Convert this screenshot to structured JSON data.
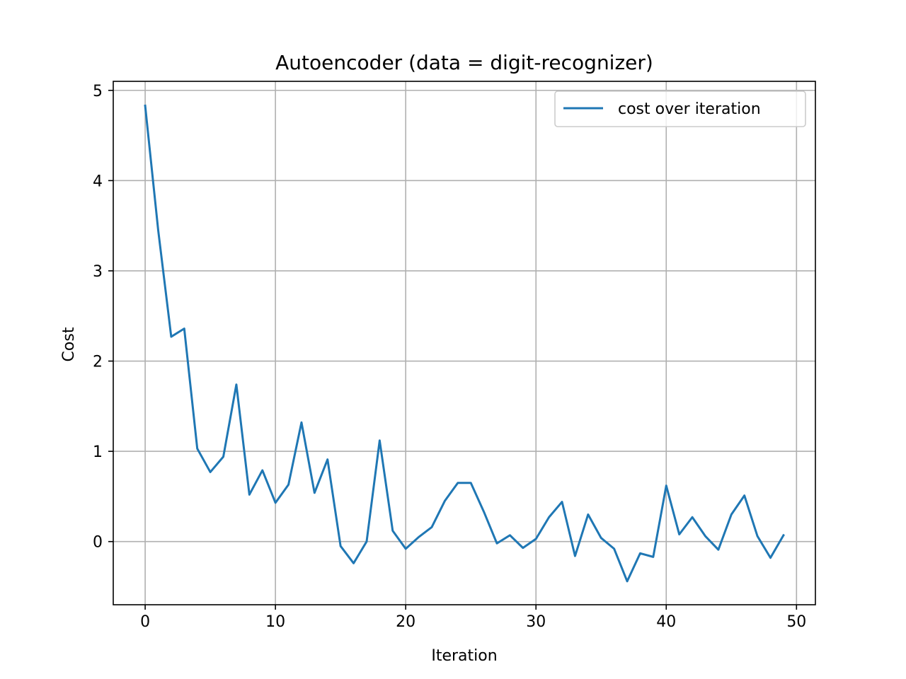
{
  "chart_data": {
    "type": "line",
    "title": "Autoencoder (data = digit-recognizer)",
    "xlabel": "Iteration",
    "ylabel": "Cost",
    "xlim": [
      -2.45,
      51.45
    ],
    "ylim": [
      -0.7,
      5.1
    ],
    "xticks": [
      0,
      10,
      20,
      30,
      40,
      50
    ],
    "yticks": [
      0,
      1,
      2,
      3,
      4,
      5
    ],
    "grid": true,
    "legend_position": "top-right",
    "series": [
      {
        "name": "cost over iteration",
        "color": "#1f77b4",
        "x": [
          0,
          1,
          2,
          3,
          4,
          5,
          6,
          7,
          8,
          9,
          10,
          11,
          12,
          13,
          14,
          15,
          16,
          17,
          18,
          19,
          20,
          21,
          22,
          23,
          24,
          25,
          26,
          27,
          28,
          29,
          30,
          31,
          32,
          33,
          34,
          35,
          36,
          37,
          38,
          39,
          40,
          41,
          42,
          43,
          44,
          45,
          46,
          47,
          48,
          49
        ],
        "values": [
          4.83,
          3.45,
          2.27,
          2.36,
          1.03,
          0.77,
          0.94,
          1.74,
          0.52,
          0.79,
          0.43,
          0.63,
          1.32,
          0.54,
          0.91,
          -0.05,
          -0.24,
          0.0,
          1.12,
          0.12,
          -0.08,
          0.05,
          0.16,
          0.45,
          0.65,
          0.65,
          0.33,
          -0.02,
          0.07,
          -0.07,
          0.03,
          0.27,
          0.44,
          -0.16,
          0.3,
          0.04,
          -0.08,
          -0.44,
          -0.13,
          -0.17,
          0.62,
          0.08,
          0.27,
          0.06,
          -0.09,
          0.3,
          0.51,
          0.06,
          -0.18,
          0.07
        ]
      }
    ]
  }
}
